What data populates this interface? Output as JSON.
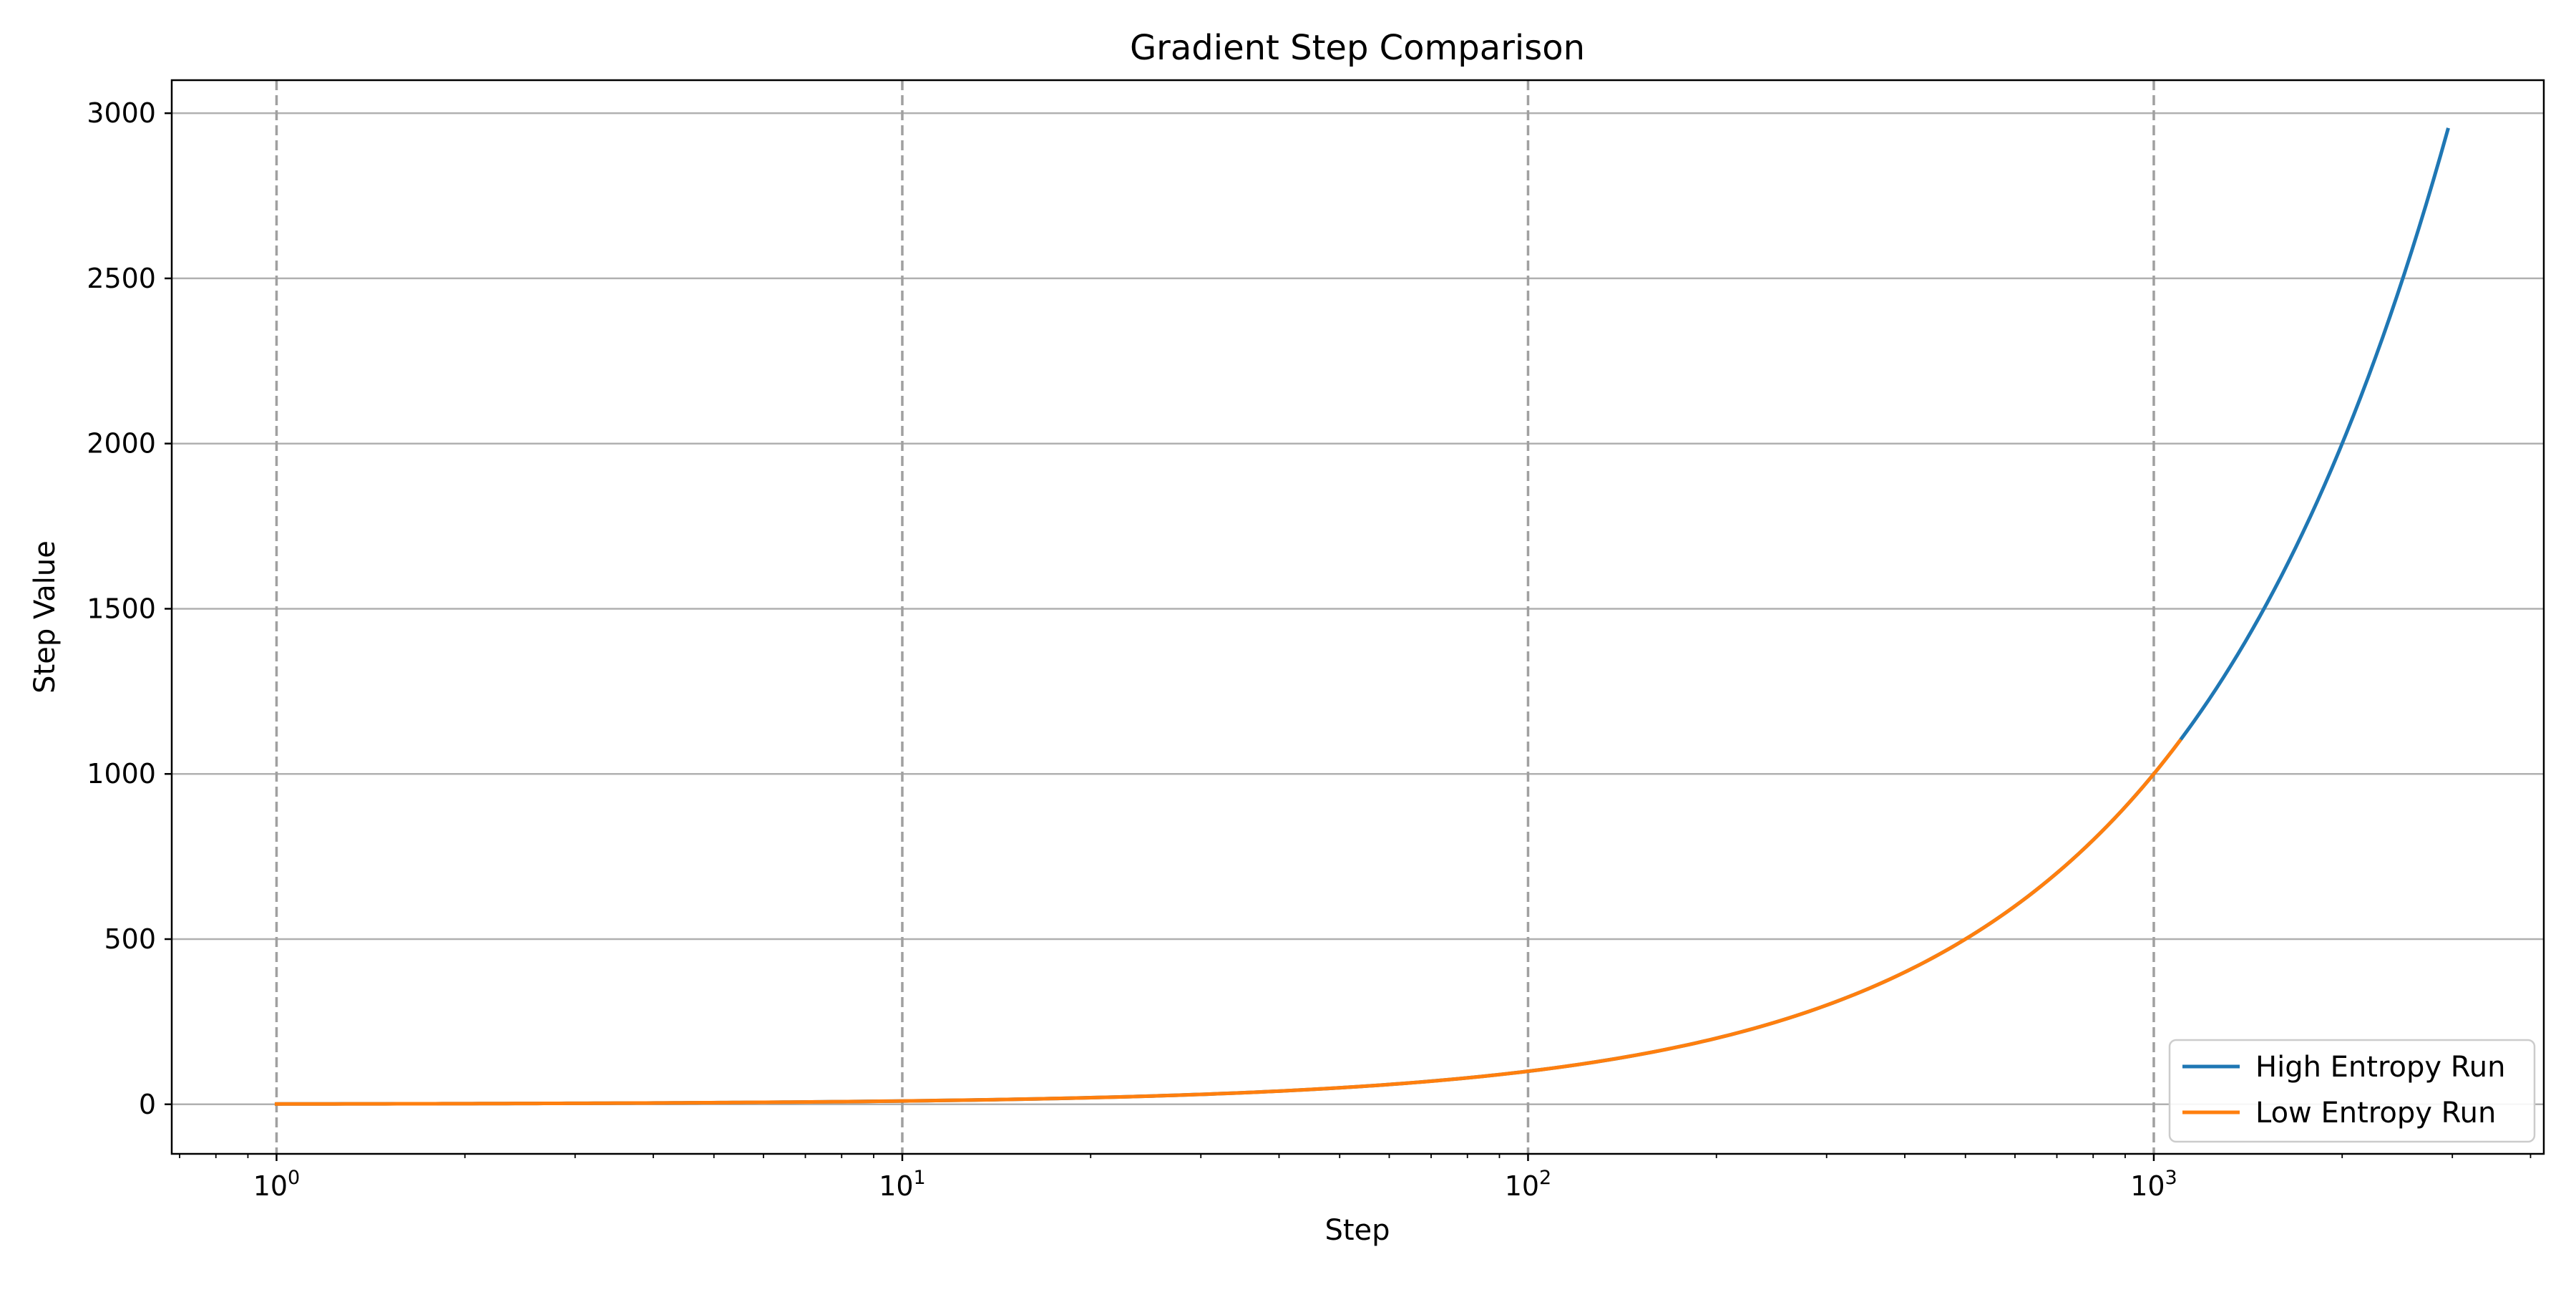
{
  "chart_data": {
    "type": "line",
    "title": "Gradient Step Comparison",
    "xlabel": "Step",
    "ylabel": "Step Value",
    "xscale": "log",
    "xlim": [
      0.68,
      4200
    ],
    "ylim": [
      -150,
      3100
    ],
    "x_major_ticks": [
      1,
      10,
      100,
      1000
    ],
    "x_tick_labels": [
      {
        "base": "10",
        "exp": "0"
      },
      {
        "base": "10",
        "exp": "1"
      },
      {
        "base": "10",
        "exp": "2"
      },
      {
        "base": "10",
        "exp": "3"
      }
    ],
    "y_ticks": [
      0,
      500,
      1000,
      1500,
      2000,
      2500,
      3000
    ],
    "y_tick_labels": [
      "0",
      "500",
      "1000",
      "1500",
      "2000",
      "2500",
      "3000"
    ],
    "grid": {
      "horizontal": "solid",
      "vertical_major": "dashed"
    },
    "legend_position": "lower right",
    "series": [
      {
        "name": "High Entropy Run",
        "color": "#1f77b4",
        "x_start": 1,
        "x_end": 2950,
        "formula": "y = x"
      },
      {
        "name": "Low Entropy Run",
        "color": "#ff7f0e",
        "x_start": 1,
        "x_end": 1100,
        "formula": "y = x"
      }
    ]
  }
}
